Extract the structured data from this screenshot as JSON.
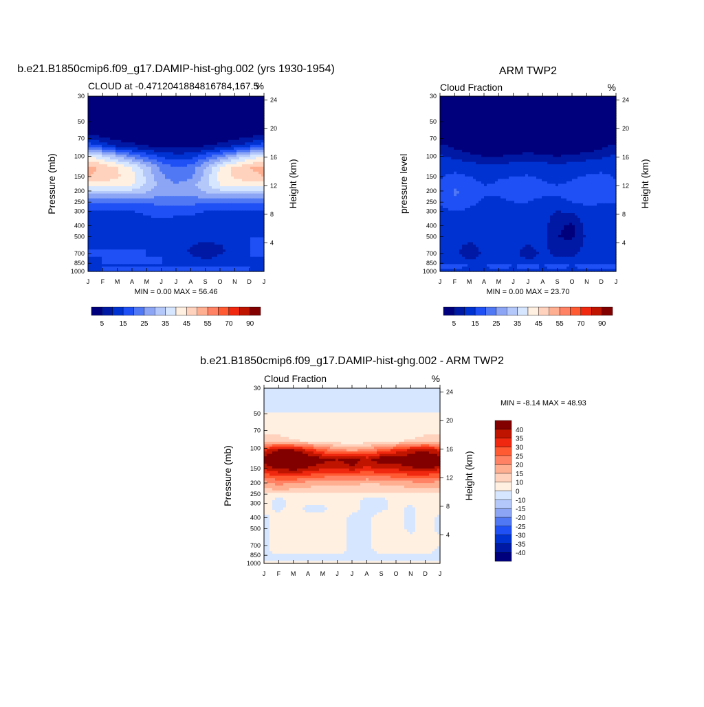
{
  "colors": {
    "abs_scale": [
      "#00007d",
      "#0019a5",
      "#0032d2",
      "#1e50f5",
      "#5078f5",
      "#8ca5f5",
      "#b4c8fa",
      "#d7e6ff",
      "#fff0e1",
      "#ffd2be",
      "#ffaf91",
      "#ff8264",
      "#ff5a32",
      "#f0280f",
      "#be1400",
      "#820000"
    ],
    "diff_scale": [
      "#00007d",
      "#0019a5",
      "#0032d2",
      "#1e50f5",
      "#5078f5",
      "#8ca5f5",
      "#b4c8fa",
      "#d7e6ff",
      "#fff0e1",
      "#ffd2be",
      "#ffaf91",
      "#ff8264",
      "#ff5a32",
      "#f0280f",
      "#be1400",
      "#820000"
    ]
  },
  "chart_data": [
    {
      "type": "heatmap",
      "title": "b.e21.B1850cmip6.f09_g17.DAMIP-hist-ghg.002 (yrs 1930-1954)",
      "left_title": "CLOUD at -0.4712041884816784,167.5",
      "right_title": "%",
      "ylabel": "Pressure (mb)",
      "ylabel_right": "Height (km)",
      "x": [
        "J",
        "F",
        "M",
        "A",
        "M",
        "J",
        "J",
        "A",
        "S",
        "O",
        "N",
        "D",
        "J"
      ],
      "pressure_ticks": [
        "30",
        "50",
        "70",
        "100",
        "150",
        "200",
        "250",
        "300",
        "400",
        "500",
        "700",
        "850",
        "1000"
      ],
      "height_ticks": [
        "24",
        "20",
        "16",
        "12",
        "8",
        "4"
      ],
      "stats": "MIN =   0.00 MAX =  56.46",
      "colorbar_labels": [
        "5",
        "15",
        "25",
        "35",
        "45",
        "55",
        "70",
        "90"
      ],
      "levels": [
        {
          "p": 30,
          "values": [
            1,
            1,
            1,
            1,
            1,
            1,
            1,
            1,
            1,
            1,
            1,
            1,
            1
          ]
        },
        {
          "p": 50,
          "values": [
            1,
            1,
            1,
            1,
            1,
            1,
            1,
            1,
            1,
            1,
            1,
            1,
            1
          ]
        },
        {
          "p": 65,
          "values": [
            5,
            3,
            1,
            1,
            1,
            1,
            1,
            1,
            1,
            1,
            1,
            3,
            5
          ]
        },
        {
          "p": 80,
          "values": [
            18,
            13,
            8,
            6,
            4,
            3,
            3,
            3,
            4,
            6,
            9,
            13,
            18
          ]
        },
        {
          "p": 100,
          "values": [
            40,
            36,
            30,
            24,
            18,
            14,
            12,
            13,
            18,
            24,
            30,
            36,
            40
          ]
        },
        {
          "p": 125,
          "values": [
            52,
            49,
            45,
            40,
            32,
            24,
            20,
            22,
            30,
            40,
            46,
            50,
            52
          ]
        },
        {
          "p": 150,
          "values": [
            50,
            48,
            46,
            42,
            34,
            26,
            22,
            24,
            32,
            42,
            46,
            48,
            50
          ]
        },
        {
          "p": 180,
          "values": [
            42,
            42,
            42,
            40,
            34,
            28,
            26,
            28,
            34,
            40,
            42,
            42,
            42
          ]
        },
        {
          "p": 215,
          "values": [
            30,
            30,
            30,
            30,
            28,
            26,
            26,
            26,
            28,
            30,
            30,
            30,
            30
          ]
        },
        {
          "p": 250,
          "values": [
            20,
            20,
            20,
            20,
            20,
            22,
            22,
            22,
            20,
            20,
            20,
            20,
            20
          ]
        },
        {
          "p": 300,
          "values": [
            15,
            14,
            14,
            15,
            16,
            17,
            17,
            17,
            15,
            14,
            15,
            15,
            15
          ]
        },
        {
          "p": 350,
          "values": [
            14,
            11,
            11,
            13,
            14,
            15,
            14,
            13,
            11,
            12,
            14,
            14,
            14
          ]
        },
        {
          "p": 400,
          "values": [
            14,
            11,
            11,
            13,
            14,
            14,
            14,
            12,
            11,
            12,
            14,
            14,
            14
          ]
        },
        {
          "p": 500,
          "values": [
            15,
            14,
            13,
            14,
            15,
            15,
            14,
            13,
            12,
            13,
            15,
            15,
            15
          ]
        },
        {
          "p": 650,
          "values": [
            15,
            15,
            15,
            15,
            15,
            14,
            13,
            9,
            6,
            8,
            14,
            15,
            15
          ]
        },
        {
          "p": 750,
          "values": [
            15,
            15,
            15,
            15,
            15,
            15,
            14,
            11,
            8,
            11,
            14,
            15,
            15
          ]
        },
        {
          "p": 850,
          "values": [
            11,
            15,
            15,
            15,
            15,
            15,
            15,
            15,
            15,
            15,
            15,
            15,
            11
          ]
        },
        {
          "p": 1000,
          "values": [
            14,
            15,
            15,
            15,
            15,
            15,
            15,
            15,
            15,
            15,
            15,
            15,
            14
          ]
        }
      ]
    },
    {
      "type": "heatmap",
      "title": "ARM TWP2",
      "left_title": "Cloud Fraction",
      "right_title": "%",
      "ylabel": "pressure level",
      "ylabel_right": "Height (km)",
      "x": [
        "J",
        "F",
        "M",
        "A",
        "M",
        "J",
        "J",
        "A",
        "S",
        "O",
        "N",
        "D",
        "J"
      ],
      "pressure_ticks": [
        "30",
        "50",
        "70",
        "100",
        "150",
        "200",
        "250",
        "300",
        "400",
        "500",
        "700",
        "850",
        "1000"
      ],
      "height_ticks": [
        "24",
        "20",
        "16",
        "12",
        "8",
        "4"
      ],
      "stats": "MIN =   0.00 MAX =  23.70",
      "colorbar_labels": [
        "5",
        "15",
        "25",
        "35",
        "45",
        "55",
        "70",
        "90"
      ],
      "levels": [
        {
          "p": 30,
          "values": [
            1,
            1,
            1,
            1,
            1,
            1,
            1,
            1,
            1,
            1,
            1,
            1,
            1
          ]
        },
        {
          "p": 70,
          "values": [
            2,
            1,
            1,
            1,
            1,
            1,
            1,
            1,
            1,
            1,
            1,
            1,
            2
          ]
        },
        {
          "p": 90,
          "values": [
            9,
            6,
            4,
            2,
            2,
            3,
            4,
            3,
            2,
            3,
            4,
            6,
            9
          ]
        },
        {
          "p": 120,
          "values": [
            14,
            13,
            12,
            10,
            10,
            12,
            13,
            12,
            10,
            12,
            13,
            14,
            14
          ]
        },
        {
          "p": 160,
          "values": [
            15,
            17,
            16,
            14,
            15,
            16,
            16,
            15,
            14,
            15,
            16,
            16,
            15
          ]
        },
        {
          "p": 200,
          "values": [
            15,
            21,
            18,
            16,
            16,
            17,
            17,
            16,
            16,
            16,
            17,
            16,
            15
          ]
        },
        {
          "p": 250,
          "values": [
            15,
            19,
            17,
            14,
            14,
            15,
            15,
            14,
            14,
            15,
            16,
            15,
            15
          ]
        },
        {
          "p": 300,
          "values": [
            14,
            15,
            14,
            10,
            11,
            13,
            13,
            12,
            10,
            11,
            14,
            14,
            14
          ]
        },
        {
          "p": 400,
          "values": [
            14,
            13,
            13,
            11,
            12,
            13,
            13,
            12,
            6,
            4,
            12,
            14,
            14
          ]
        },
        {
          "p": 500,
          "values": [
            14,
            11,
            12,
            12,
            13,
            12,
            13,
            12,
            5,
            4,
            11,
            13,
            14
          ]
        },
        {
          "p": 700,
          "values": [
            13,
            12,
            6,
            11,
            12,
            12,
            7,
            11,
            9,
            9,
            12,
            13,
            13
          ]
        },
        {
          "p": 850,
          "values": [
            12,
            12,
            12,
            12,
            12,
            12,
            12,
            12,
            12,
            12,
            12,
            12,
            12
          ]
        },
        {
          "p": 900,
          "values": [
            17,
            17,
            16,
            16,
            17,
            16,
            17,
            16,
            17,
            16,
            17,
            17,
            17
          ]
        },
        {
          "p": 1000,
          "values": [
            12,
            12,
            11,
            12,
            12,
            12,
            12,
            12,
            12,
            12,
            12,
            12,
            12
          ]
        }
      ]
    },
    {
      "type": "heatmap",
      "title": "b.e21.B1850cmip6.f09_g17.DAMIP-hist-ghg.002 - ARM TWP2",
      "left_title": "Cloud Fraction",
      "right_title": "%",
      "ylabel": "Pressure (mb)",
      "ylabel_right": "Height (km)",
      "x": [
        "J",
        "F",
        "M",
        "A",
        "M",
        "J",
        "J",
        "A",
        "S",
        "O",
        "N",
        "D",
        "J"
      ],
      "pressure_ticks": [
        "30",
        "50",
        "70",
        "100",
        "150",
        "200",
        "250",
        "300",
        "400",
        "500",
        "700",
        "850",
        "1000"
      ],
      "height_ticks": [
        "24",
        "20",
        "16",
        "12",
        "8",
        "4"
      ],
      "stats": "MIN =  -8.14 MAX =  48.93",
      "colorbar_labels": [
        "40",
        "35",
        "30",
        "25",
        "20",
        "15",
        "10",
        "0",
        "-10",
        "-15",
        "-20",
        "-25",
        "-30",
        "-35",
        "-40"
      ],
      "levels": [
        {
          "p": 30,
          "values": [
            -3,
            -3,
            -3,
            -3,
            -3,
            -3,
            -3,
            -3,
            -3,
            -3,
            -3,
            -3,
            -3
          ]
        },
        {
          "p": 48,
          "values": [
            -3,
            -3,
            -3,
            -3,
            -3,
            -3,
            -3,
            -3,
            -3,
            -3,
            -3,
            -3,
            -3
          ]
        },
        {
          "p": 52,
          "values": [
            3,
            3,
            3,
            3,
            3,
            3,
            3,
            3,
            3,
            3,
            3,
            3,
            3
          ]
        },
        {
          "p": 85,
          "values": [
            12,
            12,
            10,
            8,
            7,
            6,
            6,
            6,
            7,
            8,
            10,
            12,
            12
          ]
        },
        {
          "p": 105,
          "values": [
            35,
            42,
            42,
            35,
            28,
            22,
            20,
            22,
            28,
            33,
            38,
            40,
            35
          ]
        },
        {
          "p": 125,
          "values": [
            44,
            46,
            48,
            46,
            42,
            40,
            44,
            38,
            44,
            42,
            44,
            46,
            44
          ]
        },
        {
          "p": 145,
          "values": [
            38,
            42,
            45,
            40,
            38,
            36,
            40,
            34,
            38,
            38,
            40,
            44,
            38
          ]
        },
        {
          "p": 170,
          "values": [
            28,
            32,
            33,
            30,
            28,
            27,
            28,
            26,
            28,
            28,
            30,
            30,
            28
          ]
        },
        {
          "p": 200,
          "values": [
            18,
            22,
            20,
            18,
            17,
            16,
            17,
            15,
            16,
            17,
            18,
            20,
            18
          ]
        },
        {
          "p": 240,
          "values": [
            12,
            13,
            12,
            11,
            11,
            11,
            11,
            10,
            10,
            11,
            12,
            12,
            12
          ]
        },
        {
          "p": 280,
          "values": [
            4,
            -3,
            3,
            4,
            4,
            3,
            3,
            -3,
            -3,
            3,
            4,
            4,
            4
          ]
        },
        {
          "p": 330,
          "values": [
            3,
            -2,
            3,
            -2,
            -2,
            3,
            3,
            -2,
            -2,
            3,
            -2,
            3,
            3
          ]
        },
        {
          "p": 400,
          "values": [
            -2,
            3,
            3,
            3,
            3,
            3,
            -2,
            -2,
            3,
            3,
            -2,
            3,
            -2
          ]
        },
        {
          "p": 500,
          "values": [
            -2,
            3,
            3,
            3,
            3,
            3,
            -2,
            -2,
            3,
            3,
            -2,
            3,
            -2
          ]
        },
        {
          "p": 650,
          "values": [
            -2,
            3,
            3,
            3,
            3,
            3,
            -2,
            -2,
            3,
            3,
            3,
            3,
            3
          ]
        },
        {
          "p": 750,
          "values": [
            -2,
            3,
            3,
            3,
            3,
            3,
            -2,
            -2,
            3,
            3,
            3,
            3,
            -2
          ]
        },
        {
          "p": 900,
          "values": [
            -2,
            -2,
            -2,
            -2,
            -2,
            -2,
            -2,
            -2,
            -2,
            -2,
            -2,
            -2,
            -2
          ]
        },
        {
          "p": 1000,
          "values": [
            3,
            3,
            3,
            3,
            3,
            3,
            3,
            3,
            3,
            3,
            3,
            3,
            3
          ]
        }
      ]
    }
  ]
}
